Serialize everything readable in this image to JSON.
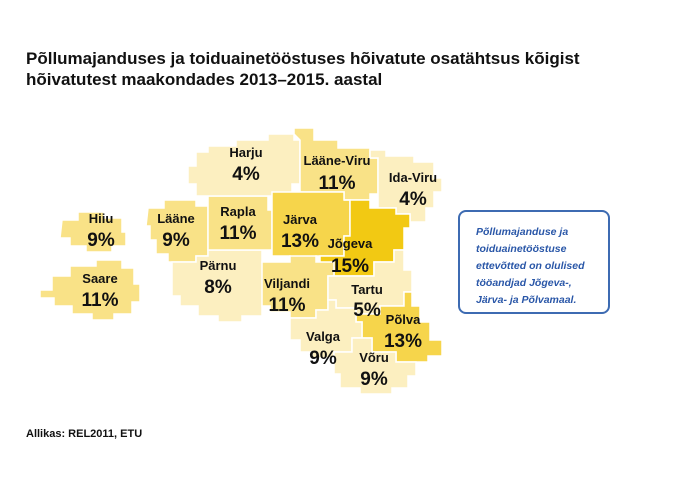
{
  "title": {
    "line1": "Põllumajanduses ja toiduainetööstuses hõivatute osatähtsus kõigist",
    "line2": "hõivatutest maakondades 2013–2015. aastal"
  },
  "map": {
    "colors": {
      "pale": "#fcefc0",
      "light": "#f9e287",
      "medium": "#f6d54b",
      "dark": "#f2c913"
    },
    "counties": [
      {
        "id": "harju",
        "name": "Harju",
        "value": "4%",
        "shade": "pale"
      },
      {
        "id": "laane-viru",
        "name": "Lääne-Viru",
        "value": "11%",
        "shade": "light"
      },
      {
        "id": "ida-viru",
        "name": "Ida-Viru",
        "value": "4%",
        "shade": "pale"
      },
      {
        "id": "hiiu",
        "name": "Hiiu",
        "value": "9%",
        "shade": "light"
      },
      {
        "id": "laane",
        "name": "Lääne",
        "value": "9%",
        "shade": "light"
      },
      {
        "id": "rapla",
        "name": "Rapla",
        "value": "11%",
        "shade": "light"
      },
      {
        "id": "jarva",
        "name": "Järva",
        "value": "13%",
        "shade": "medium"
      },
      {
        "id": "jogeva",
        "name": "Jõgeva",
        "value": "15%",
        "shade": "dark"
      },
      {
        "id": "saare",
        "name": "Saare",
        "value": "11%",
        "shade": "light"
      },
      {
        "id": "parnu",
        "name": "Pärnu",
        "value": "8%",
        "shade": "pale"
      },
      {
        "id": "viljandi",
        "name": "Viljandi",
        "value": "11%",
        "shade": "light"
      },
      {
        "id": "tartu",
        "name": "Tartu",
        "value": "5%",
        "shade": "pale"
      },
      {
        "id": "polva",
        "name": "Põlva",
        "value": "13%",
        "shade": "medium"
      },
      {
        "id": "valga",
        "name": "Valga",
        "value": "9%",
        "shade": "pale"
      },
      {
        "id": "voru",
        "name": "Võru",
        "value": "9%",
        "shade": "pale"
      }
    ]
  },
  "note": {
    "lines": [
      "Põllumajanduse ja",
      "toiduainetööstuse",
      "ettevõtted on olulised",
      "tööandjad Jõgeva-,",
      "Järva- ja Põlvamaal."
    ]
  },
  "source": "Allikas: REL2011, ETU"
}
